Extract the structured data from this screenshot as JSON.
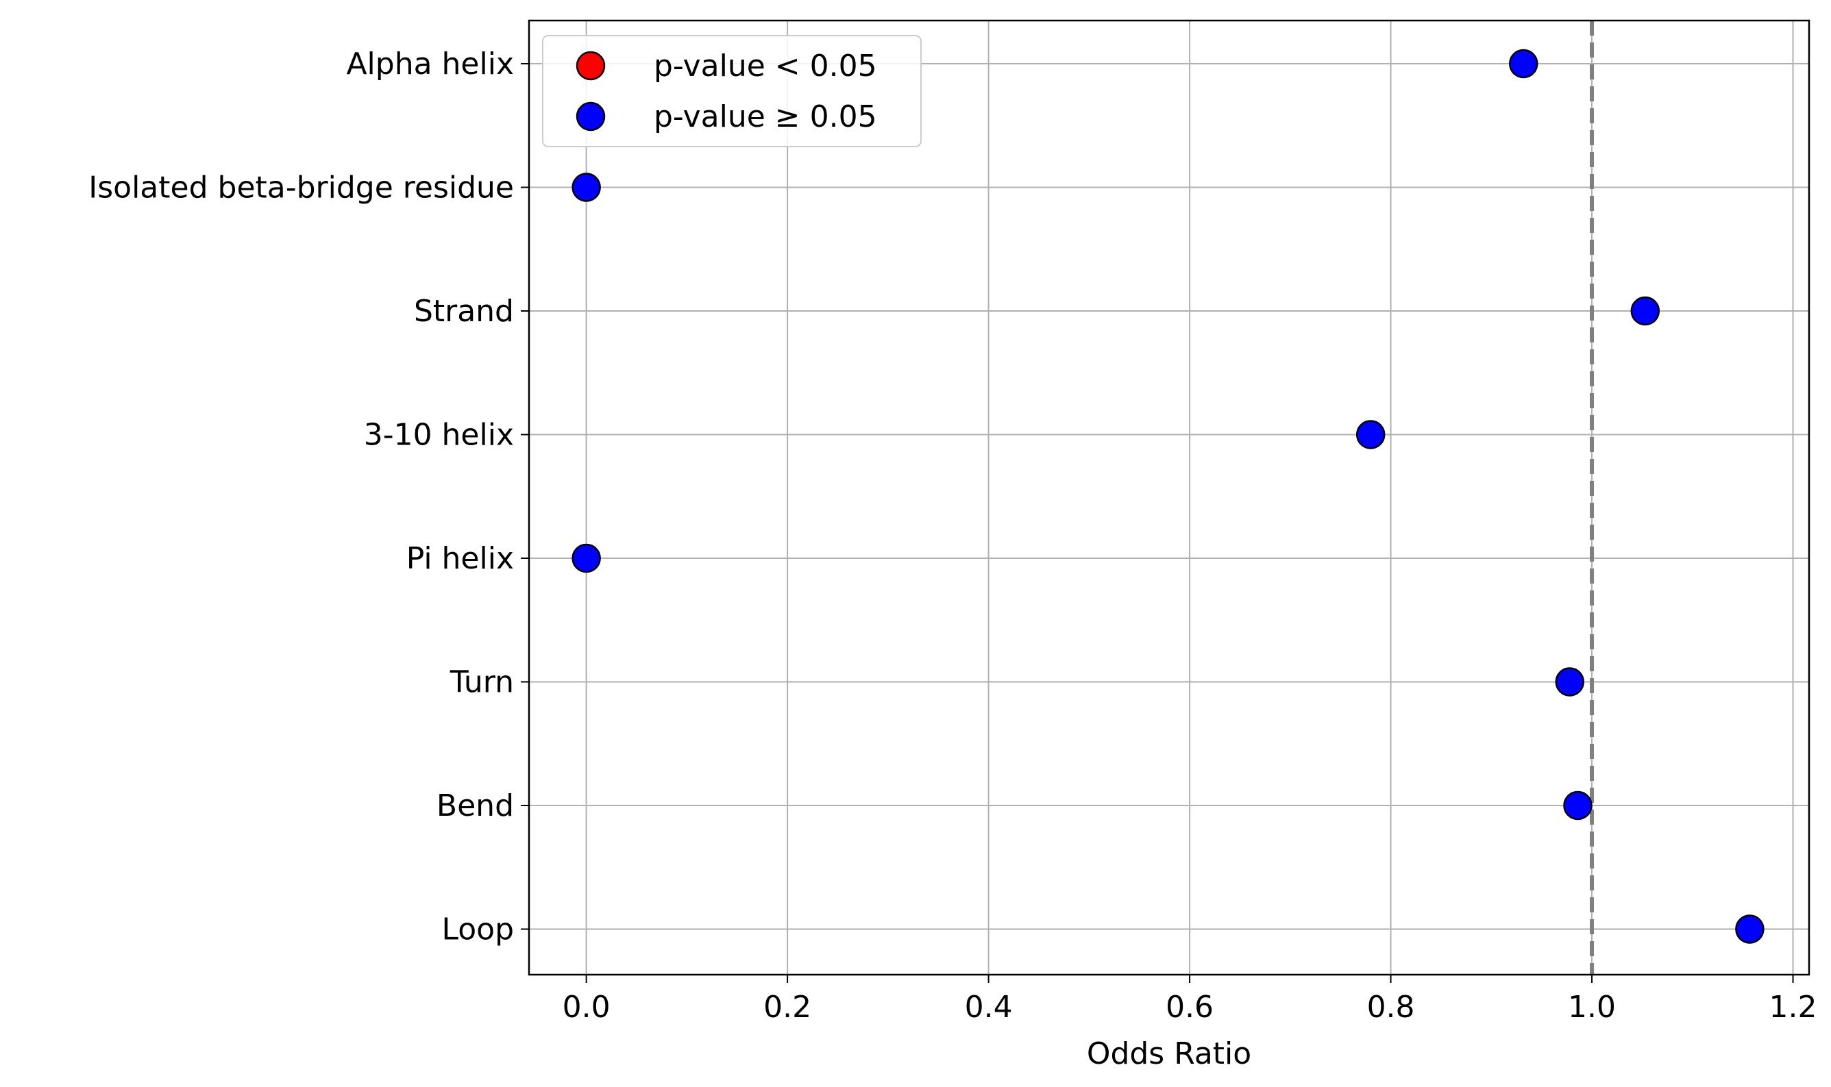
{
  "chart_data": {
    "type": "scatter",
    "title": "",
    "xlabel": "Odds Ratio",
    "ylabel": "",
    "xlim": [
      -0.057,
      1.216
    ],
    "xticks": [
      0.0,
      0.2,
      0.4,
      0.6,
      0.8,
      1.0,
      1.2
    ],
    "xtick_labels": [
      "0.0",
      "0.2",
      "0.4",
      "0.6",
      "0.8",
      "1.0",
      "1.2"
    ],
    "categories": [
      "Alpha helix",
      "Isolated beta-bridge residue",
      "Strand",
      "3-10 helix",
      "Pi helix",
      "Turn",
      "Bend",
      "Loop"
    ],
    "values": [
      0.932,
      0.0,
      1.053,
      0.78,
      0.0,
      0.978,
      0.986,
      1.157
    ],
    "significant": [
      false,
      false,
      false,
      false,
      false,
      false,
      false,
      false
    ],
    "reference_line": {
      "x": 1.0,
      "style": "dashed",
      "color": "#808080"
    },
    "grid": true,
    "legend": {
      "placement": "upper-left",
      "entries": [
        {
          "label": "p-value < 0.05",
          "color": "#ff0000"
        },
        {
          "label": "p-value ≥ 0.05",
          "color": "#0000ff"
        }
      ]
    },
    "colors": {
      "significant": "#ff0000",
      "not_significant": "#0000ff",
      "grid": "#b0b0b0",
      "marker_edge": "#000000"
    }
  }
}
